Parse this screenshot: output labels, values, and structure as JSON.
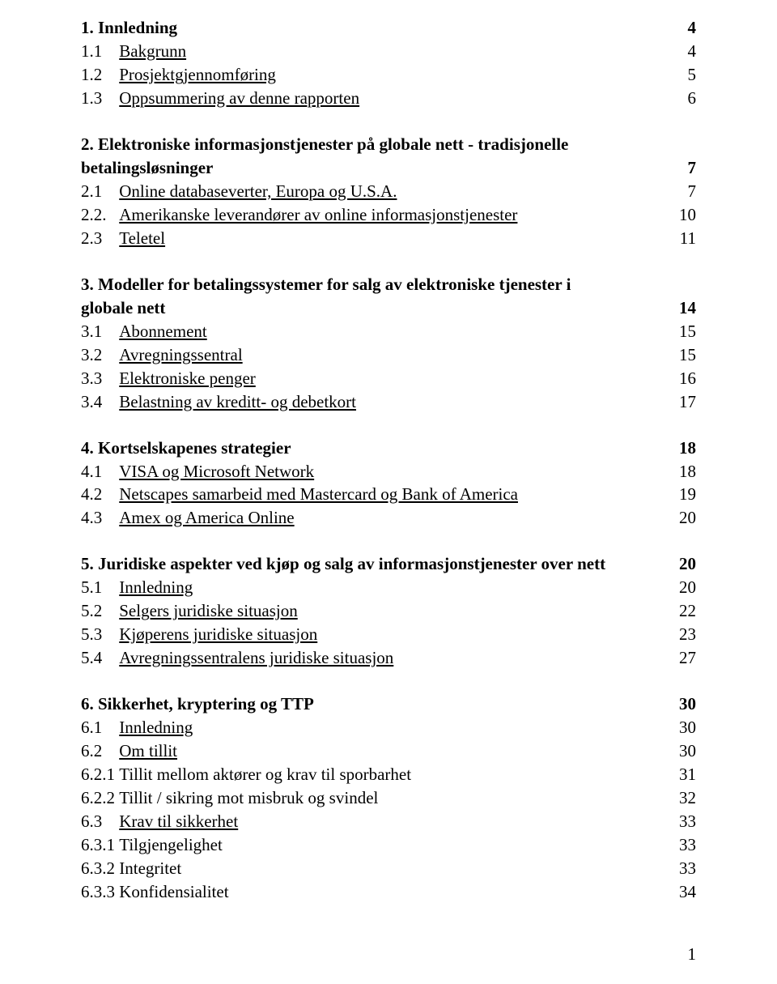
{
  "typography": {
    "font_family": "Times New Roman",
    "font_size_pt": 16,
    "color": "#000000",
    "background_color": "#ffffff"
  },
  "page_number": "1",
  "sections": [
    {
      "heading": {
        "label": "1. Innledning",
        "page": "4"
      },
      "items": [
        {
          "num": "1.1",
          "title": "Bakgrunn",
          "page": "4",
          "underline": true
        },
        {
          "num": "1.2",
          "title": "Prosjektgjennomføring",
          "page": "5",
          "underline": true
        },
        {
          "num": "1.3",
          "title": "Oppsummering av denne rapporten",
          "page": "6",
          "underline": true
        }
      ]
    },
    {
      "heading": {
        "label": "2. Elektroniske informasjonstjenester på globale nett - tradisjonelle betalingsløsninger",
        "page": "7"
      },
      "items": [
        {
          "num": "2.1",
          "title": "Online databaseverter, Europa og U.S.A.",
          "page": "7",
          "underline": true
        },
        {
          "num": "2.2.",
          "title": "Amerikanske leverandører av online informasjonstjenester",
          "page": "10",
          "underline": true
        },
        {
          "num": "2.3",
          "title": "Teletel",
          "page": "11",
          "underline": true
        }
      ]
    },
    {
      "heading": {
        "label": "3. Modeller for betalingssystemer for salg av elektroniske tjenester i globale nett",
        "page": "14"
      },
      "items": [
        {
          "num": "3.1",
          "title": "Abonnement",
          "page": "15",
          "underline": true
        },
        {
          "num": "3.2",
          "title": "Avregningssentral",
          "page": "15",
          "underline": true
        },
        {
          "num": "3.3",
          "title": "Elektroniske penger",
          "page": "16",
          "underline": true
        },
        {
          "num": "3.4",
          "title": "Belastning av kreditt- og debetkort",
          "page": "17",
          "underline": true
        }
      ]
    },
    {
      "heading": {
        "label": "4. Kortselskapenes strategier",
        "page": "18"
      },
      "items": [
        {
          "num": "4.1",
          "title": "VISA og Microsoft Network",
          "page": "18",
          "underline": true
        },
        {
          "num": "4.2",
          "title": "Netscapes samarbeid med Mastercard og Bank of America",
          "page": "19",
          "underline": true
        },
        {
          "num": "4.3",
          "title": "Amex og America Online",
          "page": "20",
          "underline": true
        }
      ]
    },
    {
      "heading": {
        "label": "5. Juridiske aspekter ved kjøp og salg  av informasjonstjenester over nett",
        "page": "20"
      },
      "items": [
        {
          "num": "5.1",
          "title": "Innledning",
          "page": "20",
          "underline": true
        },
        {
          "num": "5.2",
          "title": "Selgers juridiske situasjon",
          "page": "22",
          "underline": true
        },
        {
          "num": "5.3",
          "title": "Kjøperens juridiske situasjon",
          "page": "23",
          "underline": true
        },
        {
          "num": "5.4",
          "title": "Avregningssentralens juridiske situasjon",
          "page": "27",
          "underline": true
        }
      ]
    },
    {
      "heading": {
        "label": "6. Sikkerhet, kryptering og TTP",
        "page": "30"
      },
      "items": [
        {
          "num": "6.1",
          "title": "Innledning",
          "page": "30",
          "underline": true
        },
        {
          "num": "6.2",
          "title": "Om tillit",
          "page": "30",
          "underline": true
        },
        {
          "num": "6.2.1",
          "title": "Tillit mellom aktører og krav til sporbarhet",
          "page": "31",
          "underline": false
        },
        {
          "num": "6.2.2",
          "title": "Tillit / sikring mot misbruk og svindel",
          "page": "32",
          "underline": false
        },
        {
          "num": "6.3",
          "title": "Krav til sikkerhet",
          "page": "33",
          "underline": true
        },
        {
          "num": "6.3.1",
          "title": "Tilgjengelighet",
          "page": "33",
          "underline": false
        },
        {
          "num": "6.3.2",
          "title": "Integritet",
          "page": "33",
          "underline": false
        },
        {
          "num": "6.3.3",
          "title": "Konfidensialitet",
          "page": "34",
          "underline": false
        }
      ]
    }
  ]
}
